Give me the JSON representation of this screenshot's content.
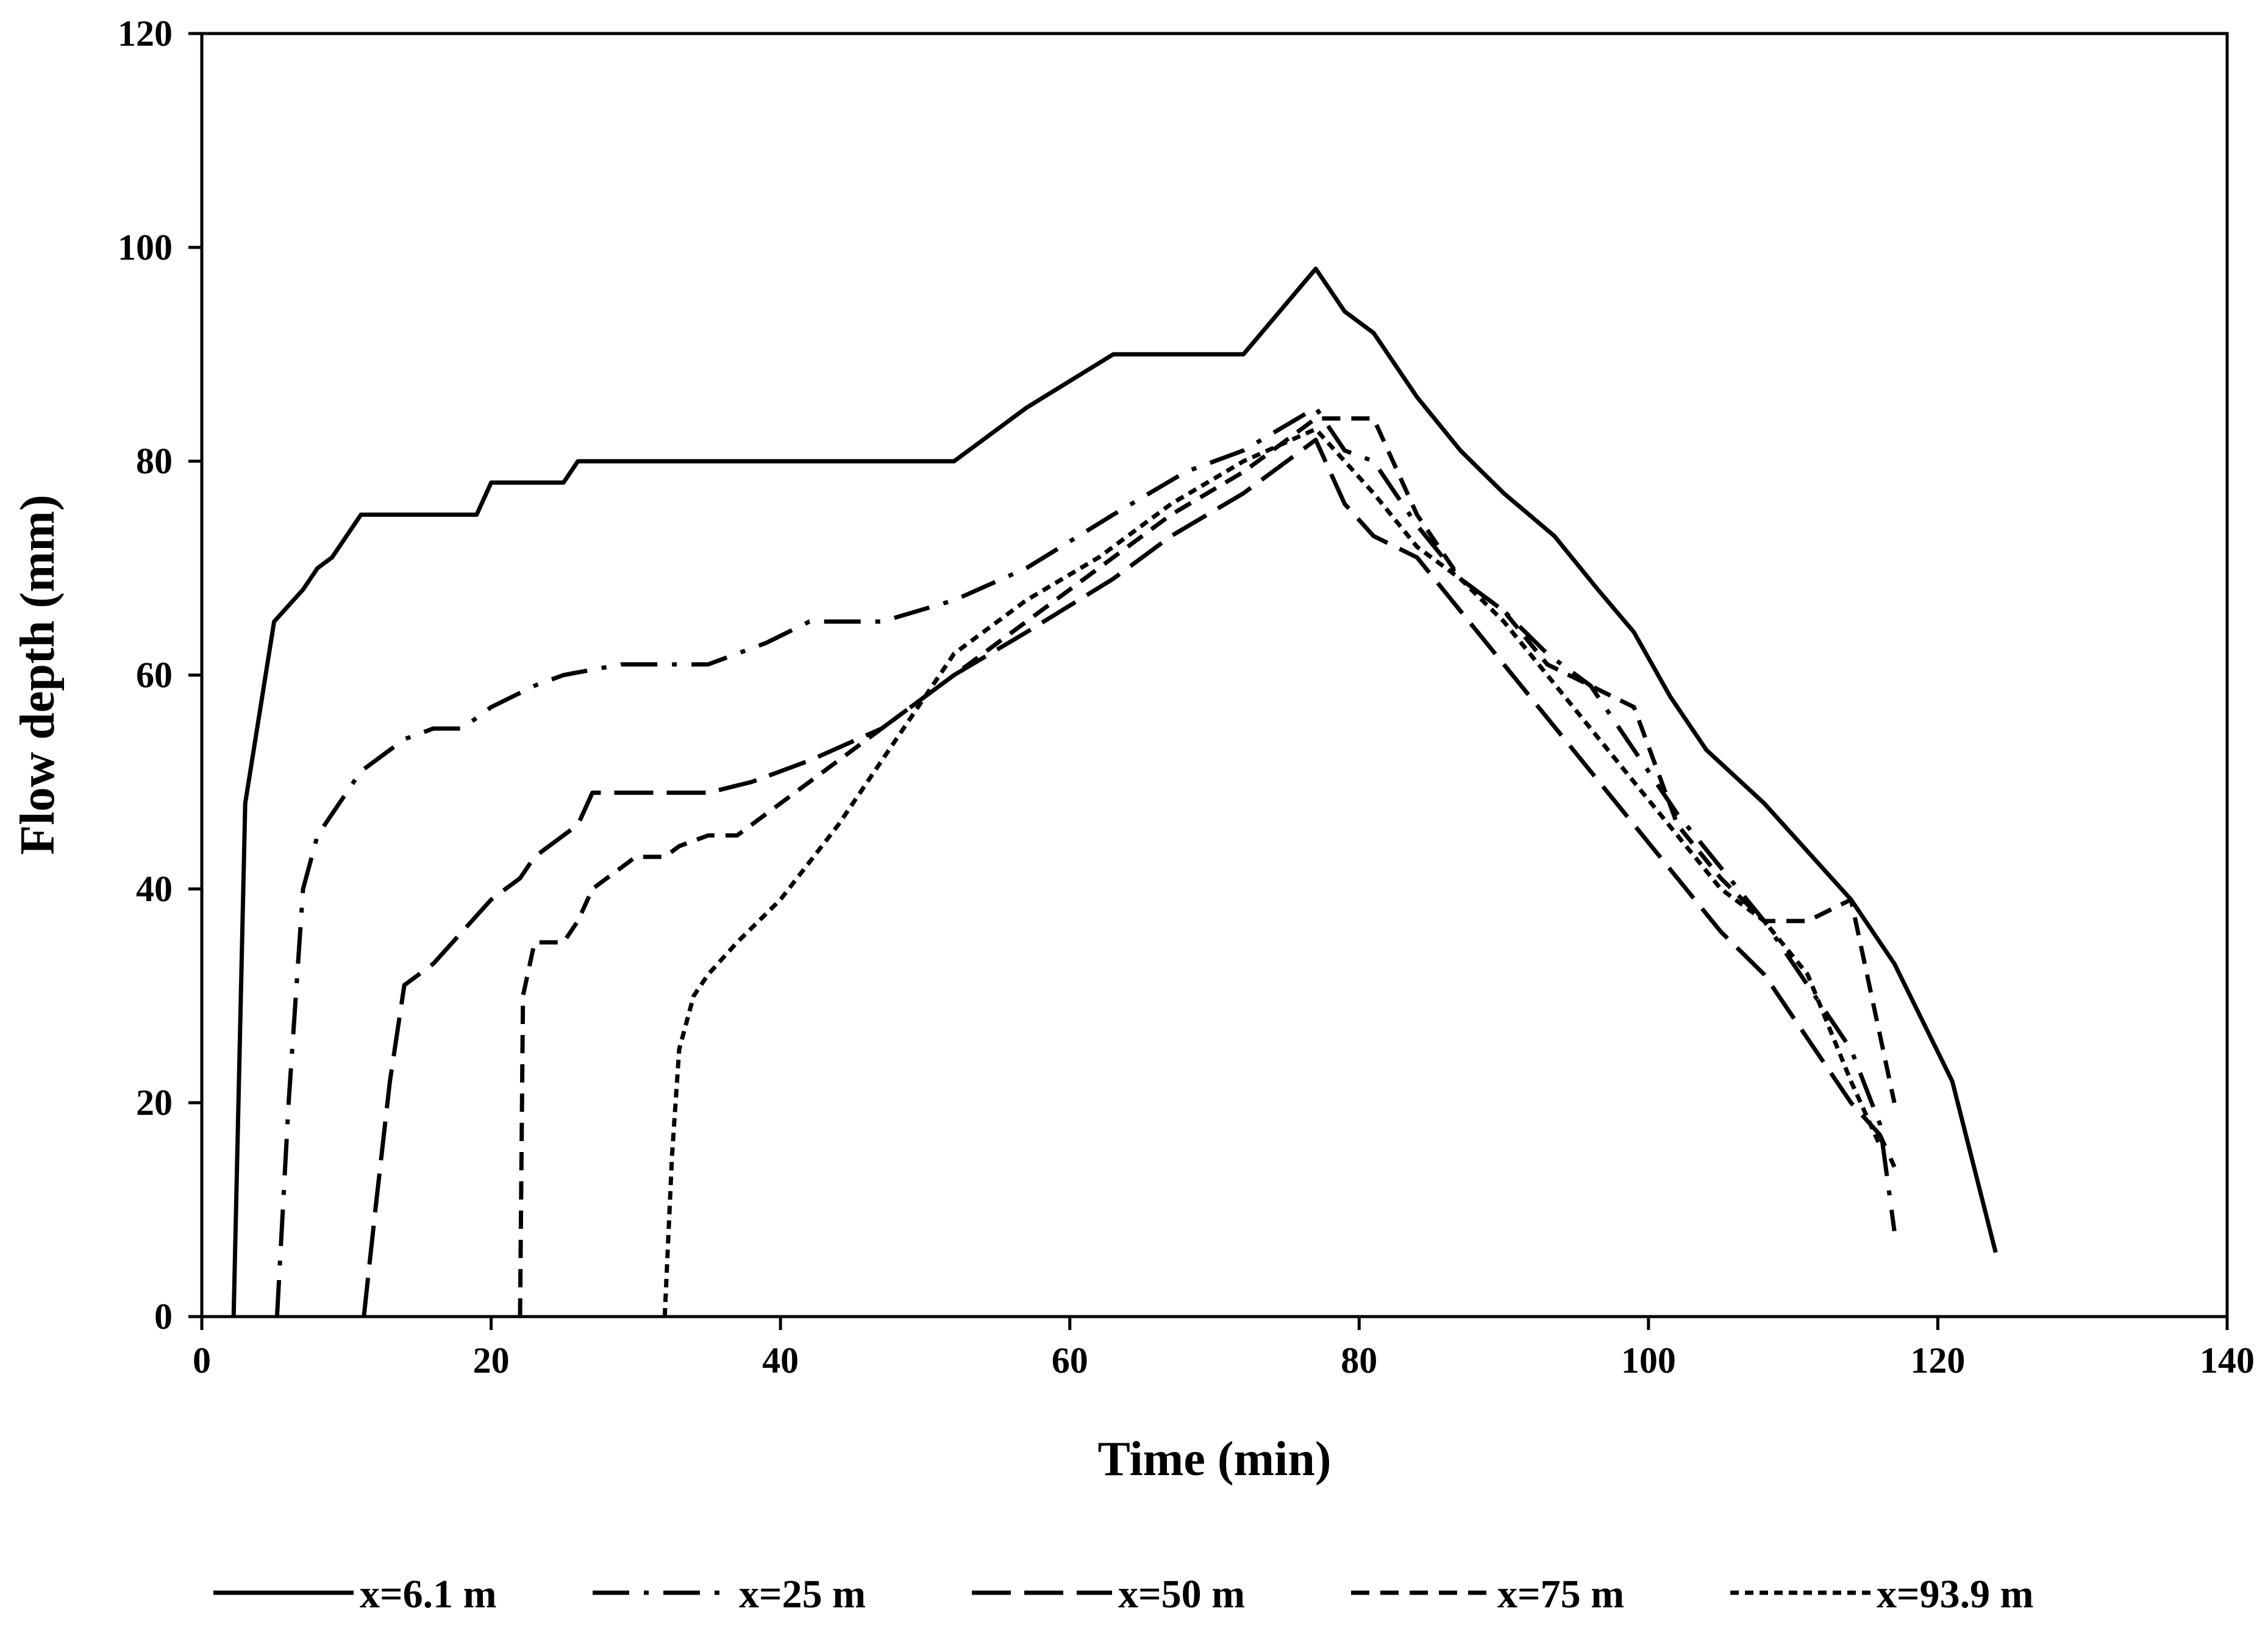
{
  "chart_data": {
    "type": "line",
    "title": "",
    "xlabel": "Time (min)",
    "ylabel": "Flow depth (mm)",
    "xlim": [
      0,
      140
    ],
    "ylim": [
      0,
      120
    ],
    "xticks": [
      0,
      20,
      40,
      60,
      80,
      100,
      120,
      140
    ],
    "yticks": [
      0,
      20,
      40,
      60,
      80,
      100,
      120
    ],
    "grid": false,
    "legend_position": "bottom",
    "series": [
      {
        "name": "x=6.1 m",
        "style": "solid",
        "x": [
          2.2,
          3,
          5,
          7,
          8,
          9,
          11,
          19,
          20,
          25,
          26,
          52,
          57,
          63,
          72,
          77,
          79,
          81,
          84,
          87,
          90,
          93.5,
          96.5,
          99,
          101.5,
          104,
          108,
          114,
          117,
          121,
          124
        ],
        "y": [
          0,
          48,
          65,
          68,
          70,
          71,
          75,
          75,
          78,
          78,
          80,
          80,
          85,
          90,
          90,
          98,
          94,
          92,
          86,
          81,
          77,
          73,
          68,
          64,
          58,
          53,
          48,
          39,
          33,
          22,
          6
        ]
      },
      {
        "name": "x=25 m",
        "style": "dash-dot",
        "x": [
          5.2,
          6,
          7,
          8,
          9,
          11,
          14,
          16,
          18,
          20,
          23,
          25,
          29,
          35,
          39,
          42,
          47,
          52,
          57,
          63,
          68,
          72,
          77,
          79,
          81,
          84,
          87,
          90,
          93,
          96,
          99,
          102,
          105,
          108,
          111,
          114,
          116,
          117
        ],
        "y": [
          0,
          20,
          40,
          45,
          47,
          51,
          54,
          55,
          55,
          57,
          59,
          60,
          61,
          61,
          63,
          65,
          65,
          67,
          70,
          75,
          79,
          81,
          85,
          81,
          80,
          74,
          69,
          66,
          62,
          59,
          53,
          47,
          42,
          37,
          31,
          25,
          18,
          8
        ]
      },
      {
        "name": "x=50 m",
        "style": "dash",
        "x": [
          11.2,
          12,
          13,
          14,
          16,
          18,
          20,
          22,
          23,
          25,
          26,
          27,
          29,
          32,
          35,
          38,
          42,
          47,
          52,
          57,
          63,
          67,
          72,
          77,
          79,
          81,
          84,
          87,
          90,
          93,
          96,
          99,
          102,
          105,
          108,
          111,
          114,
          116,
          117
        ],
        "y": [
          0,
          10,
          22,
          31,
          33,
          36,
          39,
          41,
          43,
          45,
          46,
          49,
          49,
          49,
          49,
          50,
          52,
          55,
          60,
          64,
          69,
          73,
          77,
          82,
          76,
          73,
          71,
          66,
          61,
          56,
          51,
          46,
          41,
          36,
          32,
          26,
          20,
          17,
          14
        ]
      },
      {
        "name": "x=75 m",
        "style": "dash-medium",
        "x": [
          22,
          22.2,
          23,
          25,
          26,
          27,
          29,
          30,
          32,
          33,
          35,
          37,
          39,
          42,
          47,
          52,
          57,
          62,
          67,
          72,
          77,
          79,
          81,
          84,
          87,
          90,
          93,
          96,
          99,
          102,
          105,
          108,
          111,
          114,
          117
        ],
        "y": [
          0,
          30,
          35,
          35,
          37,
          40,
          42,
          43,
          43,
          44,
          45,
          45,
          47,
          50,
          55,
          60,
          65,
          70,
          75,
          79,
          84,
          84,
          84,
          75,
          69,
          66,
          61,
          59,
          57,
          46,
          41,
          37,
          37,
          39,
          20
        ]
      },
      {
        "name": "x=93.9 m",
        "style": "dash-short",
        "x": [
          32,
          32.5,
          33,
          34,
          35,
          37,
          40,
          44,
          48,
          52,
          57,
          62,
          67,
          72,
          77,
          79,
          81,
          84,
          87,
          90,
          93,
          96,
          99,
          102,
          105,
          108,
          111,
          114,
          116
        ],
        "y": [
          0,
          15,
          25,
          30,
          32,
          35,
          39,
          46,
          54,
          62,
          67,
          71,
          76,
          80,
          83,
          80,
          77,
          72,
          69,
          65,
          60,
          55,
          50,
          45,
          40,
          37,
          32,
          22,
          16
        ]
      }
    ]
  }
}
